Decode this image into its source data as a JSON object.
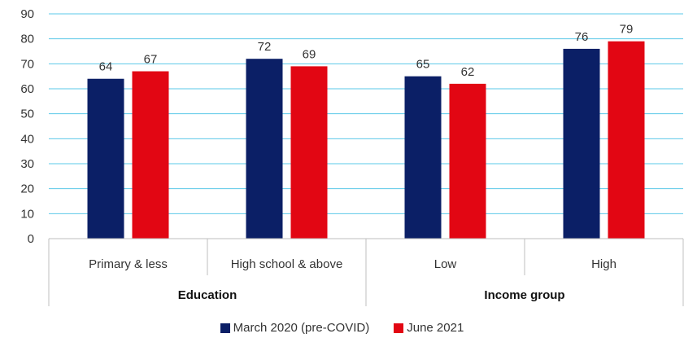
{
  "chart_data": {
    "type": "bar",
    "series": [
      {
        "name": "March 2020 (pre-COVID)",
        "color": "#0b1f66",
        "values": [
          64,
          72,
          65,
          76
        ]
      },
      {
        "name": "June 2021",
        "color": "#e20613",
        "values": [
          67,
          69,
          62,
          79
        ]
      }
    ],
    "categories": [
      "Primary & less",
      "High school & above",
      "Low",
      "High"
    ],
    "groups": [
      {
        "label": "Education",
        "categories": [
          0,
          1
        ]
      },
      {
        "label": "Income group",
        "categories": [
          2,
          3
        ]
      }
    ],
    "y_ticks": [
      "0",
      "10",
      "20",
      "30",
      "40",
      "50",
      "60",
      "70",
      "80",
      "90"
    ],
    "ylim": [
      0,
      90
    ],
    "grid": true,
    "gridline_color": "#5bc8e8",
    "legend_position": "bottom"
  }
}
